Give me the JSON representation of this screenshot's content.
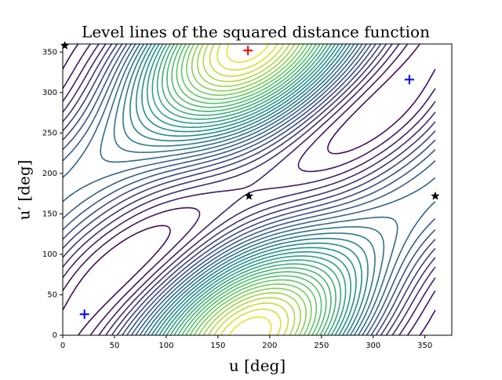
{
  "chart_data": {
    "type": "contour",
    "title": "Level lines of the squared distance function",
    "x_label": "u [deg]",
    "y_label": "u′ [deg]",
    "xlim": [
      0,
      376
    ],
    "ylim": [
      0,
      360
    ],
    "xticks": [
      0,
      50,
      100,
      150,
      200,
      250,
      300,
      350
    ],
    "yticks": [
      0,
      50,
      100,
      150,
      200,
      250,
      300,
      350
    ],
    "markers": [
      {
        "marker": "plus",
        "color": "#0000ff",
        "x": [
          21,
          335
        ],
        "y": [
          26,
          316
        ]
      },
      {
        "marker": "plus",
        "color": "#ff0000",
        "x": [
          179
        ],
        "y": [
          352
        ]
      },
      {
        "marker": "star",
        "color": "#000000",
        "x": [
          180,
          360,
          2
        ],
        "y": [
          172,
          172,
          358
        ]
      }
    ]
  }
}
